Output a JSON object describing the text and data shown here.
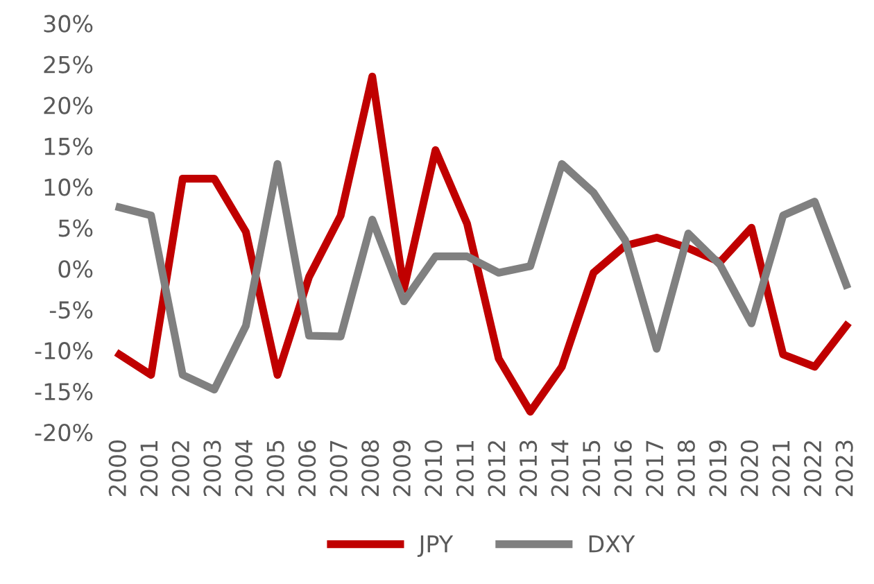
{
  "chart_data": {
    "type": "line",
    "categories": [
      "2000",
      "2001",
      "2002",
      "2003",
      "2004",
      "2005",
      "2006",
      "2007",
      "2008",
      "2009",
      "2010",
      "2011",
      "2012",
      "2013",
      "2014",
      "2015",
      "2016",
      "2017",
      "2018",
      "2019",
      "2020",
      "2021",
      "2022",
      "2023"
    ],
    "series": [
      {
        "name": "JPY",
        "color": "#c00000",
        "values": [
          -10.5,
          -13,
          11,
          11,
          4.5,
          -13,
          -1,
          6.5,
          23.5,
          -2.5,
          14.5,
          5.5,
          -11,
          -17.5,
          -12,
          -0.5,
          2.8,
          3.8,
          2.5,
          0.8,
          5,
          -10.5,
          -12,
          -7
        ]
      },
      {
        "name": "DXY",
        "color": "#808080",
        "values": [
          7.5,
          6.5,
          -13,
          -14.8,
          -7,
          12.8,
          -8.2,
          -8.3,
          6,
          -4,
          1.5,
          1.5,
          -0.5,
          0.3,
          12.8,
          9.3,
          3.5,
          -9.8,
          4.3,
          0.5,
          -6.7,
          6.5,
          8.2,
          -2
        ]
      }
    ],
    "ylim": [
      -20,
      30
    ],
    "yticks": [
      {
        "value": -20,
        "label": "-20%"
      },
      {
        "value": -15,
        "label": "-15%"
      },
      {
        "value": -10,
        "label": "-10%"
      },
      {
        "value": -5,
        "label": "-5%"
      },
      {
        "value": 0,
        "label": "0%"
      },
      {
        "value": 5,
        "label": "5%"
      },
      {
        "value": 10,
        "label": "10%"
      },
      {
        "value": 15,
        "label": "15%"
      },
      {
        "value": 20,
        "label": "20%"
      },
      {
        "value": 25,
        "label": "25%"
      },
      {
        "value": 30,
        "label": "30%"
      }
    ],
    "grid": false,
    "legend": "bottom"
  }
}
